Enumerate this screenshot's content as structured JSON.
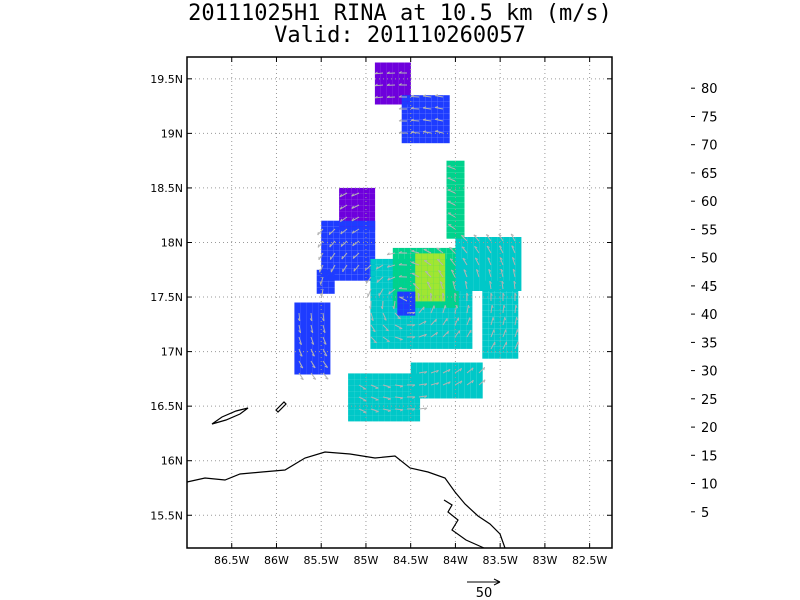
{
  "title_line1": "20111025H1 RINA at 10.5 km (m/s)",
  "title_line2": "Valid: 201110260057",
  "chart_data": {
    "type": "heatmap",
    "title": "20111025H1 RINA at 10.5 km (m/s)",
    "subtitle": "Valid: 201110260057",
    "xlim": [
      -87.0,
      -82.25
    ],
    "ylim": [
      15.2,
      19.7
    ],
    "x_ticks": [
      {
        "value": -86.5,
        "label": "86.5W"
      },
      {
        "value": -86.0,
        "label": "86W"
      },
      {
        "value": -85.5,
        "label": "85.5W"
      },
      {
        "value": -85.0,
        "label": "85W"
      },
      {
        "value": -84.5,
        "label": "84.5W"
      },
      {
        "value": -84.0,
        "label": "84W"
      },
      {
        "value": -83.5,
        "label": "83.5W"
      },
      {
        "value": -83.0,
        "label": "83W"
      },
      {
        "value": -82.5,
        "label": "82.5W"
      }
    ],
    "y_ticks": [
      {
        "value": 15.5,
        "label": "15.5N"
      },
      {
        "value": 16.0,
        "label": "16N"
      },
      {
        "value": 16.5,
        "label": "16.5N"
      },
      {
        "value": 17.0,
        "label": "17N"
      },
      {
        "value": 17.5,
        "label": "17.5N"
      },
      {
        "value": 18.0,
        "label": "18N"
      },
      {
        "value": 18.5,
        "label": "18.5N"
      },
      {
        "value": 19.0,
        "label": "19N"
      },
      {
        "value": 19.5,
        "label": "19.5N"
      }
    ],
    "grid": true,
    "colorbar": {
      "labels": [
        "5",
        "10",
        "15",
        "20",
        "25",
        "30",
        "35",
        "40",
        "45",
        "50",
        "55",
        "60",
        "65",
        "70",
        "75",
        "80"
      ],
      "colors": [
        "#a000c8",
        "#6e00dc",
        "#1e3cff",
        "#00a0ff",
        "#00c8c8",
        "#00d28c",
        "#00dc00",
        "#a0e632",
        "#e6dc32",
        "#e6af2d",
        "#f08228",
        "#fa3c3c",
        "#f00082",
        "#8c00c8",
        "#00c8c8",
        "#a0e632",
        "#aaaaaa"
      ]
    },
    "vector_reference": "50",
    "storm_center": {
      "lon": -84.55,
      "lat": 17.45
    },
    "speed_regions": [
      {
        "lon": [
          -84.9,
          -84.5
        ],
        "lat": [
          19.3,
          19.65
        ],
        "speed": 5
      },
      {
        "lon": [
          -84.6,
          -84.1
        ],
        "lat": [
          18.95,
          19.35
        ],
        "speed": 12
      },
      {
        "lon": [
          -85.3,
          -84.95
        ],
        "lat": [
          18.15,
          18.5
        ],
        "speed": 7
      },
      {
        "lon": [
          -85.5,
          -84.95
        ],
        "lat": [
          17.7,
          18.2
        ],
        "speed": 12
      },
      {
        "lon": [
          -85.55,
          -85.35
        ],
        "lat": [
          17.55,
          17.75
        ],
        "speed": 12
      },
      {
        "lon": [
          -85.8,
          -85.4
        ],
        "lat": [
          16.8,
          17.45
        ],
        "speed": 13
      },
      {
        "lon": [
          -85.2,
          -84.4
        ],
        "lat": [
          16.4,
          16.8
        ],
        "speed": 20
      },
      {
        "lon": [
          -84.5,
          -83.7
        ],
        "lat": [
          16.6,
          16.9
        ],
        "speed": 22
      },
      {
        "lon": [
          -84.95,
          -83.85
        ],
        "lat": [
          17.05,
          17.85
        ],
        "speed": 23
      },
      {
        "lon": [
          -84.7,
          -84.0
        ],
        "lat": [
          17.45,
          17.95
        ],
        "speed": 27
      },
      {
        "lon": [
          -84.45,
          -84.15
        ],
        "lat": [
          17.5,
          17.9
        ],
        "speed": 35
      },
      {
        "lon": [
          -84.0,
          -83.3
        ],
        "lat": [
          17.6,
          18.05
        ],
        "speed": 22
      },
      {
        "lon": [
          -83.7,
          -83.3
        ],
        "lat": [
          16.95,
          17.65
        ],
        "speed": 20
      },
      {
        "lon": [
          -84.1,
          -83.95
        ],
        "lat": [
          18.05,
          18.75
        ],
        "speed": 27
      },
      {
        "lon": [
          -84.65,
          -84.45
        ],
        "lat": [
          17.35,
          17.55
        ],
        "speed": 10
      }
    ]
  }
}
